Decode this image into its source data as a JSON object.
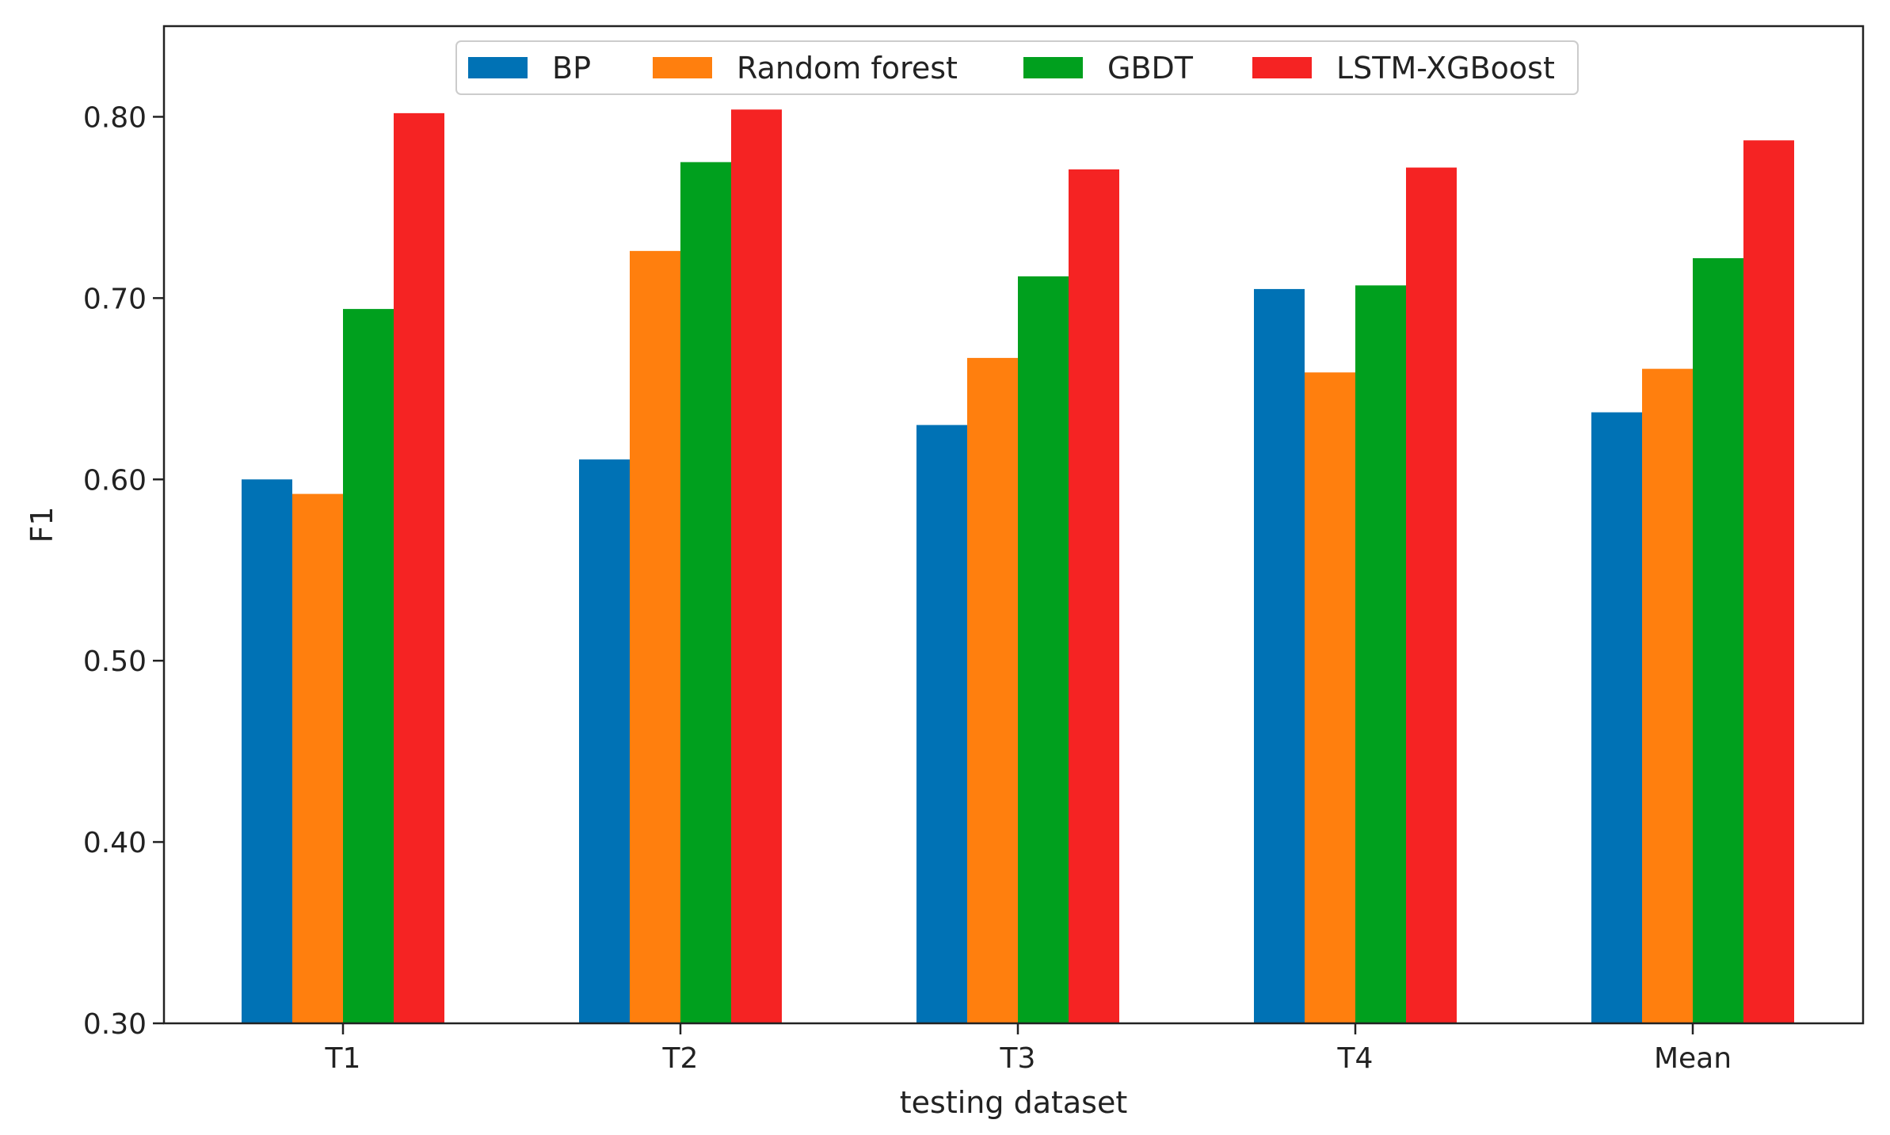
{
  "chart_data": {
    "type": "bar",
    "title": "",
    "xlabel": "testing dataset",
    "ylabel": "F1",
    "categories": [
      "T1",
      "T2",
      "T3",
      "T4",
      "Mean"
    ],
    "series": [
      {
        "name": "BP",
        "color": "#0072b5",
        "values": [
          0.6,
          0.611,
          0.63,
          0.705,
          0.637
        ]
      },
      {
        "name": "Random forest",
        "color": "#ff7f0e",
        "values": [
          0.592,
          0.726,
          0.667,
          0.659,
          0.661
        ]
      },
      {
        "name": "GBDT",
        "color": "#00a01e",
        "values": [
          0.694,
          0.775,
          0.712,
          0.707,
          0.722
        ]
      },
      {
        "name": "LSTM-XGBoost",
        "color": "#f52323",
        "values": [
          0.802,
          0.804,
          0.771,
          0.772,
          0.787
        ]
      }
    ],
    "ylim": [
      0.3,
      0.85
    ],
    "yticks": [
      0.3,
      0.4,
      0.5,
      0.6,
      0.7,
      0.8
    ],
    "ytick_labels": [
      "0.30",
      "0.40",
      "0.50",
      "0.60",
      "0.70",
      "0.80"
    ],
    "grid": false,
    "legend_position": "top-center"
  }
}
